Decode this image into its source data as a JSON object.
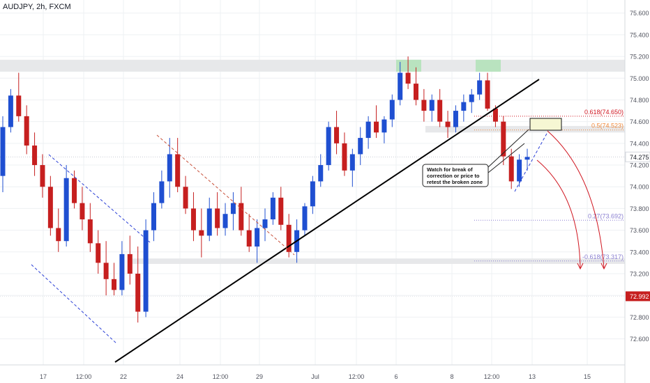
{
  "header": {
    "symbol": "AUDJPY, 2h, FXCM"
  },
  "colors": {
    "up": "#1f4fd1",
    "down": "#c61f1f",
    "grid": "#eef0f3",
    "zone": "#e7e8ea",
    "green_zone": "#b9e3bf",
    "trendline": "#000000",
    "fib_orange": "#f08a3c",
    "fib_purple": "#8a7fd1",
    "fib_red": "#d0141e",
    "price_tag": "#c61f1f",
    "channel_blue": "#2a3fd6",
    "channel_red": "#c8503a"
  },
  "chart_data": {
    "type": "candlestick",
    "instrument": "AUDJPY",
    "timeframe": "2h",
    "source": "FXCM",
    "y_range": [
      72.36,
      75.72
    ],
    "y_ticks": [
      "75.600",
      "75.400",
      "75.200",
      "75.000",
      "74.800",
      "74.600",
      "74.400",
      "74.200",
      "74.000",
      "73.800",
      "73.600",
      "73.400",
      "73.200",
      "73.000",
      "72.800",
      "72.600"
    ],
    "x_ticks": [
      "17",
      "12:00",
      "22",
      "24",
      "12:00",
      "29",
      "Jul",
      "12:00",
      "6",
      "8",
      "12:00",
      "13",
      "15"
    ],
    "current_price": "74.275",
    "marked_price": "72.992",
    "fib_levels": [
      {
        "label": "0.618(74.650)",
        "value": 74.65,
        "color_key": "fib_red"
      },
      {
        "label": "0.5(74.523)",
        "value": 74.523,
        "color_key": "fib_orange"
      },
      {
        "label": "0.27(73.692)",
        "value": 73.692,
        "color_key": "fib_purple"
      },
      {
        "label": "-0.618(73.317)",
        "value": 73.317,
        "color_key": "fib_purple"
      }
    ],
    "zones": [
      {
        "name": "resistance",
        "from": 75.06,
        "to": 75.17
      },
      {
        "name": "support",
        "from": 73.29,
        "to": 73.34
      },
      {
        "name": "retest",
        "from": 74.5,
        "to": 74.56
      }
    ],
    "candles": [
      [
        74.1,
        74.65,
        73.95,
        74.55
      ],
      [
        74.55,
        74.9,
        74.5,
        74.84
      ],
      [
        74.84,
        75.05,
        74.6,
        74.65
      ],
      [
        74.65,
        74.75,
        74.3,
        74.38
      ],
      [
        74.38,
        74.5,
        74.1,
        74.2
      ],
      [
        74.2,
        74.3,
        73.9,
        74.0
      ],
      [
        74.0,
        74.1,
        73.55,
        73.62
      ],
      [
        73.62,
        73.8,
        73.4,
        73.5
      ],
      [
        73.5,
        74.2,
        73.45,
        74.08
      ],
      [
        74.08,
        74.15,
        73.8,
        73.85
      ],
      [
        73.85,
        74.0,
        73.6,
        73.7
      ],
      [
        73.7,
        73.85,
        73.4,
        73.48
      ],
      [
        73.48,
        73.6,
        73.2,
        73.3
      ],
      [
        73.3,
        73.5,
        73.0,
        73.15
      ],
      [
        73.15,
        73.3,
        73.0,
        73.05
      ],
      [
        73.05,
        73.5,
        73.0,
        73.38
      ],
      [
        73.38,
        73.55,
        73.1,
        73.2
      ],
      [
        73.2,
        73.45,
        72.75,
        72.85
      ],
      [
        72.85,
        73.7,
        72.8,
        73.6
      ],
      [
        73.6,
        73.95,
        73.5,
        73.85
      ],
      [
        73.85,
        74.15,
        73.8,
        74.05
      ],
      [
        74.05,
        74.45,
        73.9,
        74.3
      ],
      [
        74.3,
        74.45,
        73.95,
        74.0
      ],
      [
        74.0,
        74.1,
        73.75,
        73.8
      ],
      [
        73.8,
        73.95,
        73.5,
        73.6
      ],
      [
        73.6,
        73.8,
        73.35,
        73.55
      ],
      [
        73.55,
        73.9,
        73.5,
        73.8
      ],
      [
        73.8,
        73.95,
        73.55,
        73.62
      ],
      [
        73.62,
        73.85,
        73.55,
        73.75
      ],
      [
        73.75,
        73.95,
        73.6,
        73.85
      ],
      [
        73.85,
        74.0,
        73.55,
        73.6
      ],
      [
        73.6,
        73.75,
        73.4,
        73.45
      ],
      [
        73.45,
        73.7,
        73.3,
        73.62
      ],
      [
        73.62,
        73.8,
        73.5,
        73.7
      ],
      [
        73.7,
        73.95,
        73.65,
        73.9
      ],
      [
        73.9,
        74.0,
        73.6,
        73.65
      ],
      [
        73.65,
        73.75,
        73.35,
        73.4
      ],
      [
        73.4,
        73.7,
        73.3,
        73.6
      ],
      [
        73.6,
        73.85,
        73.55,
        73.82
      ],
      [
        73.82,
        74.1,
        73.75,
        74.05
      ],
      [
        74.05,
        74.3,
        74.0,
        74.2
      ],
      [
        74.2,
        74.6,
        74.15,
        74.55
      ],
      [
        74.55,
        74.7,
        74.3,
        74.4
      ],
      [
        74.4,
        74.5,
        74.1,
        74.15
      ],
      [
        74.15,
        74.35,
        74.0,
        74.3
      ],
      [
        74.3,
        74.55,
        74.2,
        74.45
      ],
      [
        74.45,
        74.65,
        74.35,
        74.6
      ],
      [
        74.6,
        74.75,
        74.45,
        74.5
      ],
      [
        74.5,
        74.65,
        74.4,
        74.62
      ],
      [
        74.62,
        74.85,
        74.55,
        74.8
      ],
      [
        74.8,
        75.15,
        74.75,
        75.05
      ],
      [
        75.05,
        75.2,
        74.9,
        74.95
      ],
      [
        74.95,
        75.1,
        74.75,
        74.8
      ],
      [
        74.8,
        74.9,
        74.6,
        74.7
      ],
      [
        74.7,
        74.85,
        74.6,
        74.8
      ],
      [
        74.8,
        74.9,
        74.55,
        74.6
      ],
      [
        74.6,
        74.7,
        74.45,
        74.55
      ],
      [
        74.55,
        74.75,
        74.5,
        74.7
      ],
      [
        74.7,
        74.85,
        74.6,
        74.78
      ],
      [
        74.78,
        74.9,
        74.68,
        74.85
      ],
      [
        74.85,
        75.05,
        74.8,
        74.98
      ],
      [
        74.98,
        75.05,
        74.7,
        74.72
      ],
      [
        74.72,
        74.75,
        74.55,
        74.6
      ],
      [
        74.6,
        74.65,
        74.2,
        74.28
      ],
      [
        74.28,
        74.35,
        73.98,
        74.05
      ],
      [
        74.05,
        74.3,
        74.0,
        74.25
      ],
      [
        74.25,
        74.35,
        74.15,
        74.275
      ]
    ]
  },
  "annotations": {
    "callout_line1": "Watch for break of",
    "callout_line2": "correction or price to",
    "callout_line3": "retest the broken zone"
  }
}
